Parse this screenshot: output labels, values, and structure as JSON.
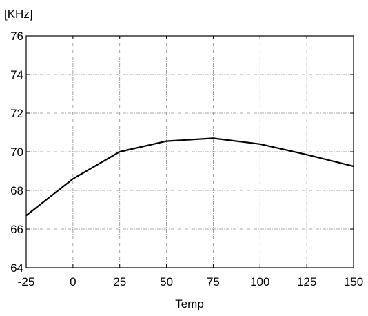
{
  "chart_data": {
    "type": "line",
    "title": "",
    "xlabel": "Temp",
    "ylabel": "[KHz]",
    "x": [
      -25,
      0,
      25,
      50,
      75,
      100,
      125,
      150
    ],
    "x_tick_labels": [
      "-25",
      "0",
      "25",
      "50",
      "75",
      "100",
      "125",
      "150"
    ],
    "y_tick_labels": [
      "64",
      "66",
      "68",
      "70",
      "72",
      "74",
      "76"
    ],
    "y_ticks": [
      64,
      66,
      68,
      70,
      72,
      74,
      76
    ],
    "xlim": [
      -25,
      150
    ],
    "ylim": [
      64,
      76
    ],
    "grid": true,
    "legend": "none",
    "series": [
      {
        "values": [
          66.7,
          68.6,
          70.0,
          70.55,
          70.7,
          70.4,
          69.85,
          69.25
        ],
        "color": "#000000"
      }
    ]
  }
}
